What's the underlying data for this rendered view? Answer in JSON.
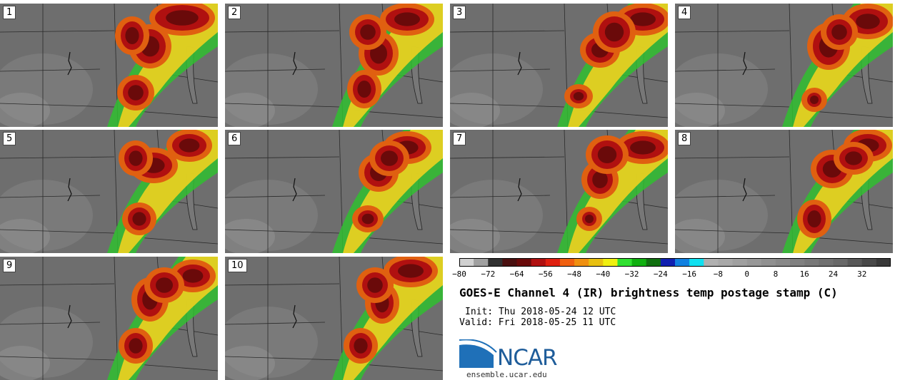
{
  "panels": [
    {
      "label": "1"
    },
    {
      "label": "2"
    },
    {
      "label": "3"
    },
    {
      "label": "4"
    },
    {
      "label": "5"
    },
    {
      "label": "6"
    },
    {
      "label": "7"
    },
    {
      "label": "8"
    },
    {
      "label": "9"
    },
    {
      "label": "10"
    }
  ],
  "colorbar": {
    "ticks": [
      "−80",
      "−72",
      "−64",
      "−56",
      "−48",
      "−40",
      "−32",
      "−24",
      "−16",
      "−8",
      "0",
      "8",
      "16",
      "24",
      "32"
    ],
    "range": [
      -80,
      40
    ],
    "step": 4,
    "colors": [
      "#d0d0d0",
      "#a0a0a0",
      "#303030",
      "#4a1010",
      "#6a0a0a",
      "#b01010",
      "#e02010",
      "#f06010",
      "#f09010",
      "#e8c010",
      "#f0f010",
      "#30e030",
      "#10b010",
      "#107010",
      "#1020b0",
      "#1080e0",
      "#10e0f0",
      "#b0b0b0",
      "#a8a8a8",
      "#a0a0a0",
      "#989898",
      "#909090",
      "#888888",
      "#808080",
      "#787878",
      "#707070",
      "#686868",
      "#585858",
      "#484848",
      "#383838"
    ]
  },
  "title": "GOES-E Channel 4 (IR) brightness temp postage stamp (C)",
  "init_line": "Init: Thu 2018-05-24 12 UTC",
  "valid_line": "Valid: Fri 2018-05-25 11 UTC",
  "logo_text": "NCAR",
  "site": "ensemble.ucar.edu"
}
